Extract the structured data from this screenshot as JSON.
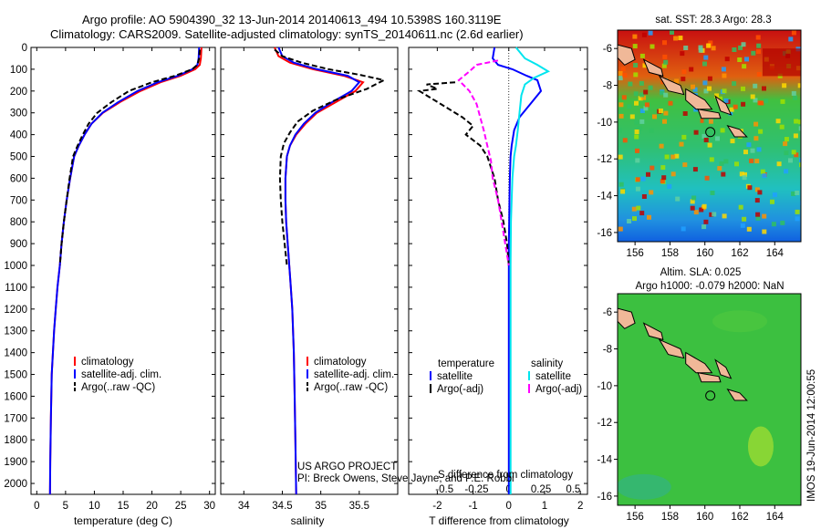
{
  "header": {
    "line1": "Argo profile: AO 5904390_32 13-Jun-2014 20140613_494 10.5398S 160.3119E",
    "line2": "Climatology: CARS2009. Satellite-adjusted climatology: synTS_20140611.nc (2.6d earlier)"
  },
  "colors": {
    "climatology": "#ff0000",
    "satellite": "#0000ff",
    "argo": "#000000",
    "sal_satellite": "#00e5ee",
    "sal_argo": "#ff00ff"
  },
  "chart_data": [
    {
      "id": "temperature",
      "type": "line",
      "xlabel": "temperature (deg C)",
      "ylabel": "",
      "xlim": [
        -1,
        31
      ],
      "ylim": [
        2050,
        0
      ],
      "xticks": [
        0,
        5,
        10,
        15,
        20,
        25,
        30
      ],
      "yticks": [
        0,
        100,
        200,
        300,
        400,
        500,
        600,
        700,
        800,
        900,
        1000,
        1100,
        1200,
        1300,
        1400,
        1500,
        1600,
        1700,
        1800,
        1900,
        2000
      ],
      "legend": [
        "climatology",
        "satellite-adj. clim.",
        "Argo(..raw -QC)"
      ],
      "series": [
        {
          "name": "climatology",
          "style": "solid",
          "x": [
            28.6,
            28.5,
            28.3,
            27.5,
            25.0,
            21.5,
            18.0,
            14.5,
            11.5,
            9.5,
            8.3,
            7.3,
            6.5,
            5.8,
            5.2,
            4.7,
            4.3,
            4.0,
            3.6,
            3.3,
            3.0,
            2.8,
            2.6,
            2.45,
            2.35,
            2.3
          ],
          "y": [
            0,
            50,
            80,
            100,
            130,
            160,
            200,
            250,
            300,
            350,
            400,
            450,
            500,
            600,
            700,
            800,
            900,
            1000,
            1100,
            1200,
            1300,
            1400,
            1500,
            1700,
            1900,
            2050
          ]
        },
        {
          "name": "satellite-adj. clim.",
          "style": "solid",
          "x": [
            28.2,
            28.1,
            27.9,
            27.0,
            24.5,
            21.0,
            17.5,
            14.2,
            11.4,
            9.5,
            8.3,
            7.3,
            6.5,
            5.8,
            5.2,
            4.7,
            4.3,
            4.0,
            3.6,
            3.3,
            3.0,
            2.8,
            2.6,
            2.45,
            2.35,
            2.3
          ],
          "y": [
            0,
            50,
            80,
            100,
            130,
            160,
            200,
            250,
            300,
            350,
            400,
            450,
            500,
            600,
            700,
            800,
            900,
            1000,
            1100,
            1200,
            1300,
            1400,
            1500,
            1700,
            1900,
            2050
          ]
        },
        {
          "name": "Argo(..raw -QC)",
          "style": "dashed",
          "x": [
            28.3,
            28.2,
            27.9,
            27.0,
            24.0,
            20.0,
            16.0,
            13.0,
            10.5,
            9.0,
            8.0,
            7.1,
            6.3,
            5.7,
            5.2,
            4.7,
            4.3,
            4.0
          ],
          "y": [
            10,
            50,
            80,
            100,
            130,
            160,
            200,
            250,
            300,
            350,
            400,
            450,
            500,
            600,
            700,
            800,
            900,
            1000
          ]
        }
      ]
    },
    {
      "id": "salinity",
      "type": "line",
      "xlabel": "salinity",
      "ylabel": "",
      "xlim": [
        33.7,
        36.0
      ],
      "ylim": [
        2050,
        0
      ],
      "xticks": [
        34,
        34.5,
        35,
        35.5
      ],
      "xticklabels": [
        "34",
        "34.5",
        "35",
        "35.5"
      ],
      "legend": [
        "climatology",
        "satellite-adj. clim.",
        "Argo(..raw -QC)"
      ],
      "annotation_line1": "US ARGO PROJECT",
      "annotation_line2": "PI: Breck Owens, Steve Jayne, and P.E. Robbi",
      "series": [
        {
          "name": "climatology",
          "style": "solid",
          "x": [
            34.4,
            34.45,
            34.6,
            34.9,
            35.3,
            35.55,
            35.45,
            35.2,
            34.95,
            34.8,
            34.68,
            34.6,
            34.56,
            34.54,
            34.54,
            34.55,
            34.57,
            34.59,
            34.61,
            34.63,
            34.65,
            34.66,
            34.67,
            34.68
          ],
          "y": [
            0,
            40,
            70,
            100,
            130,
            160,
            200,
            250,
            300,
            350,
            400,
            450,
            500,
            600,
            700,
            800,
            900,
            1000,
            1100,
            1200,
            1400,
            1600,
            1800,
            2050
          ]
        },
        {
          "name": "satellite-adj. clim.",
          "style": "solid",
          "x": [
            34.45,
            34.5,
            34.65,
            34.95,
            35.35,
            35.5,
            35.4,
            35.15,
            34.93,
            34.78,
            34.67,
            34.6,
            34.56,
            34.54,
            34.54,
            34.55,
            34.57,
            34.59,
            34.61,
            34.63,
            34.65,
            34.66,
            34.67,
            34.68
          ],
          "y": [
            0,
            40,
            70,
            100,
            130,
            160,
            200,
            250,
            300,
            350,
            400,
            450,
            500,
            600,
            700,
            800,
            900,
            1000,
            1100,
            1200,
            1400,
            1600,
            1800,
            2050
          ]
        },
        {
          "name": "Argo(..raw -QC)",
          "style": "dashed",
          "x": [
            34.4,
            34.5,
            34.75,
            35.1,
            35.5,
            35.82,
            35.6,
            35.2,
            34.9,
            34.7,
            34.6,
            34.52,
            34.48,
            34.47,
            34.48,
            34.5,
            34.53,
            34.56
          ],
          "y": [
            10,
            40,
            70,
            100,
            125,
            150,
            190,
            240,
            290,
            340,
            390,
            440,
            500,
            600,
            700,
            800,
            900,
            1000
          ]
        }
      ]
    },
    {
      "id": "difference",
      "type": "line",
      "xlabel": "T difference from climatology",
      "xlabel_top": "S difference from climatology",
      "xlim": [
        -2.8,
        2.2
      ],
      "ylim": [
        2050,
        0
      ],
      "xticks": [
        -2,
        -1,
        0,
        1,
        2
      ],
      "xticklabels": [
        "-2",
        "-1",
        "0",
        "1",
        "2"
      ],
      "top_xticks": [
        -1.8,
        -0.9,
        0,
        0.9,
        1.8
      ],
      "top_xticklabels": [
        "-0.5",
        "-0.25",
        "0",
        "0.25",
        "0.5"
      ],
      "legend_temperature_title": "temperature",
      "legend_salinity_title": "salinity",
      "legend_temperature": [
        "satellite",
        "Argo(-adj)"
      ],
      "legend_salinity": [
        "satellite",
        "Argo(-adj)"
      ],
      "series": [
        {
          "name": "T satellite",
          "style": "solid",
          "x": [
            -0.4,
            -0.45,
            -0.3,
            0.1,
            0.5,
            0.8,
            0.9,
            0.6,
            0.3,
            0.15,
            0.08,
            0.05,
            0.03,
            0.02,
            0.01,
            0.0,
            0.0,
            0.0
          ],
          "y": [
            0,
            50,
            80,
            100,
            130,
            150,
            200,
            260,
            320,
            380,
            450,
            500,
            600,
            700,
            800,
            900,
            1000,
            2050
          ]
        },
        {
          "name": "T Argo(-adj)",
          "style": "dashed",
          "x": [
            -1.5,
            -2.3,
            -2.0,
            -2.5,
            -2.2,
            -1.9,
            -1.6,
            -1.3,
            -1.0,
            -1.2,
            -0.8,
            -0.6,
            -0.4,
            -0.3,
            -0.15,
            -0.05,
            0.0
          ],
          "y": [
            160,
            170,
            190,
            200,
            230,
            260,
            290,
            320,
            360,
            400,
            450,
            500,
            600,
            700,
            800,
            900,
            1000
          ]
        },
        {
          "name": "S satellite",
          "style": "solid",
          "x": [
            0.2,
            0.45,
            0.8,
            1.1,
            0.7,
            0.45,
            0.35,
            0.3,
            0.25,
            0.2,
            0.15,
            0.1,
            0.08,
            0.06,
            0.05,
            0.05,
            0.05,
            0.05
          ],
          "y": [
            0,
            50,
            80,
            110,
            140,
            170,
            220,
            300,
            380,
            450,
            500,
            600,
            700,
            800,
            1000,
            1400,
            1800,
            2050
          ]
        },
        {
          "name": "S Argo(-adj)",
          "style": "dashed",
          "x": [
            -0.3,
            -0.9,
            -1.1,
            -1.4,
            -1.1,
            -0.9,
            -0.8,
            -0.7,
            -0.6,
            -0.5,
            -0.45,
            -0.3,
            -0.2,
            -0.1,
            0.0
          ],
          "y": [
            60,
            80,
            110,
            150,
            200,
            260,
            320,
            380,
            450,
            520,
            600,
            700,
            800,
            900,
            1000
          ]
        }
      ]
    },
    {
      "id": "sst_map",
      "type": "heatmap",
      "title": "sat. SST: 28.3 Argo: 28.3",
      "xlim": [
        155,
        165.5
      ],
      "ylim": [
        -16.5,
        -5
      ],
      "xticks": [
        156,
        158,
        160,
        162,
        164
      ],
      "yticks": [
        -6,
        -8,
        -10,
        -12,
        -14,
        -16
      ],
      "float_position": {
        "lon": 160.31,
        "lat": -10.54
      }
    },
    {
      "id": "sla_map",
      "type": "heatmap",
      "title_line1": "Altim. SLA: 0.025",
      "title_line2": "Argo h1000: -0.079 h2000: NaN",
      "xlim": [
        155,
        165.5
      ],
      "ylim": [
        -16.5,
        -5
      ],
      "xticks": [
        156,
        158,
        160,
        162,
        164
      ],
      "yticks": [
        -6,
        -8,
        -10,
        -12,
        -14,
        -16
      ],
      "float_position": {
        "lon": 160.31,
        "lat": -10.54
      }
    }
  ],
  "footer": {
    "imos_stamp": "IMOS 19-Jun-2014 12:00:55"
  }
}
